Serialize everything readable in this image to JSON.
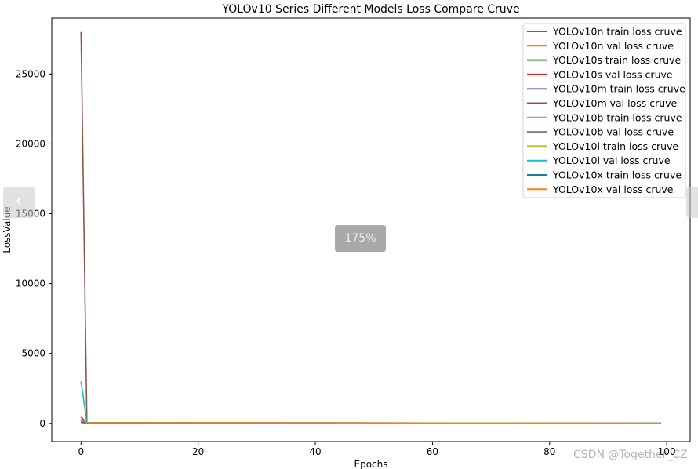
{
  "viewer": {
    "zoom_label": "175%",
    "prev_icon": "chevron-left-icon",
    "next_icon": "chevron-right-icon",
    "watermark": "CSDN @Together_CZ"
  },
  "chart_data": {
    "type": "line",
    "title": "YOLOv10 Series Different Models Loss Compare Cruve",
    "xlabel": "Epochs",
    "ylabel": "LossValue",
    "xlim": [
      -5,
      104
    ],
    "ylim": [
      -1300,
      29000
    ],
    "xticks": [
      0,
      20,
      40,
      60,
      80,
      100
    ],
    "yticks": [
      0,
      5000,
      10000,
      15000,
      20000,
      25000
    ],
    "grid": false,
    "legend_position": "upper right",
    "x": [
      0,
      1,
      99
    ],
    "series": [
      {
        "name": "YOLOv10n train loss cruve",
        "color": "#1f77b4",
        "values": [
          60,
          30,
          10
        ]
      },
      {
        "name": "YOLOv10n val loss cruve",
        "color": "#ff7f0e",
        "values": [
          90,
          40,
          15
        ]
      },
      {
        "name": "YOLOv10s train loss cruve",
        "color": "#2ca02c",
        "values": [
          70,
          35,
          12
        ]
      },
      {
        "name": "YOLOv10s val loss cruve",
        "color": "#d62728",
        "values": [
          450,
          50,
          15
        ]
      },
      {
        "name": "YOLOv10m train loss cruve",
        "color": "#9467bd",
        "values": [
          80,
          35,
          12
        ]
      },
      {
        "name": "YOLOv10m val loss cruve",
        "color": "#8c564b",
        "values": [
          28000,
          60,
          15
        ]
      },
      {
        "name": "YOLOv10b train loss cruve",
        "color": "#e377c2",
        "values": [
          75,
          35,
          12
        ]
      },
      {
        "name": "YOLOv10b val loss cruve",
        "color": "#7f7f7f",
        "values": [
          200,
          45,
          15
        ]
      },
      {
        "name": "YOLOv10l train loss cruve",
        "color": "#bcbd22",
        "values": [
          85,
          35,
          12
        ]
      },
      {
        "name": "YOLOv10l val loss cruve",
        "color": "#17becf",
        "values": [
          3000,
          50,
          15
        ]
      },
      {
        "name": "YOLOv10x train loss cruve",
        "color": "#1f77b4",
        "values": [
          90,
          35,
          12
        ]
      },
      {
        "name": "YOLOv10x val loss cruve",
        "color": "#ff7f0e",
        "values": [
          300,
          45,
          18
        ]
      }
    ]
  }
}
